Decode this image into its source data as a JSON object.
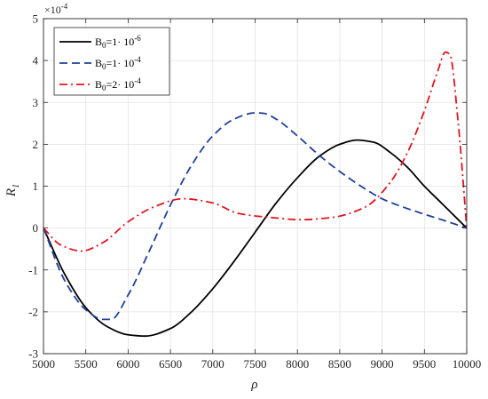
{
  "chart_data": {
    "type": "line",
    "title": "",
    "xlabel": "ρ",
    "ylabel": "R",
    "ylabel_subscript": "1",
    "y_multiplier": {
      "base": "×10",
      "exponent": "-4"
    },
    "xlim": [
      5000,
      10000
    ],
    "ylim": [
      -3,
      5
    ],
    "xticks": [
      5000,
      5500,
      6000,
      6500,
      7000,
      7500,
      8000,
      8500,
      9000,
      9500,
      10000
    ],
    "yticks": [
      -3,
      -2,
      -1,
      0,
      1,
      2,
      3,
      4,
      5
    ],
    "grid": true,
    "legend_position": "top-left",
    "series": [
      {
        "name": "B0=1· 10-6",
        "legend": {
          "main": "B",
          "sub": "0",
          "mid": "=1· 10",
          "sup": "-6"
        },
        "color": "#000000",
        "dash": "solid",
        "x": [
          5000,
          5250,
          5500,
          5750,
          6000,
          6200,
          6500,
          6750,
          7000,
          7250,
          7500,
          7750,
          8000,
          8250,
          8500,
          8700,
          8900,
          9100,
          9300,
          9500,
          9700,
          9900,
          10000
        ],
        "y": [
          0,
          -1.1,
          -1.9,
          -2.35,
          -2.55,
          -2.58,
          -2.4,
          -2.0,
          -1.45,
          -0.8,
          -0.1,
          0.6,
          1.2,
          1.7,
          2.0,
          2.1,
          2.05,
          1.8,
          1.45,
          1.0,
          0.6,
          0.2,
          0
        ]
      },
      {
        "name": "B0=1· 10-4",
        "legend": {
          "main": "B",
          "sub": "0",
          "mid": "=1· 10",
          "sup": "-4"
        },
        "color": "#1f3f99",
        "dash": "dashed",
        "x": [
          5000,
          5250,
          5500,
          5700,
          5800,
          6000,
          6250,
          6500,
          6750,
          7000,
          7250,
          7500,
          7600,
          7750,
          8000,
          8250,
          8500,
          8750,
          9000,
          9250,
          9500,
          9750,
          10000
        ],
        "y": [
          0,
          -1.25,
          -1.95,
          -2.18,
          -2.18,
          -1.6,
          -0.55,
          0.55,
          1.5,
          2.2,
          2.6,
          2.75,
          2.74,
          2.6,
          2.2,
          1.75,
          1.35,
          1.0,
          0.7,
          0.5,
          0.33,
          0.17,
          0
        ]
      },
      {
        "name": "B0=2· 10-4",
        "legend": {
          "main": "B",
          "sub": "0",
          "mid": "=2· 10",
          "sup": "-4"
        },
        "color": "#e0141e",
        "dash": "dashdot",
        "x": [
          5000,
          5200,
          5450,
          5700,
          6000,
          6300,
          6650,
          7000,
          7300,
          7700,
          8050,
          8400,
          8800,
          9100,
          9300,
          9500,
          9650,
          9750,
          9800,
          9900,
          10000
        ],
        "y": [
          0,
          -0.4,
          -0.55,
          -0.35,
          0.15,
          0.5,
          0.7,
          0.6,
          0.35,
          0.25,
          0.2,
          0.25,
          0.5,
          1.1,
          1.8,
          2.8,
          3.7,
          4.2,
          4.15,
          2.5,
          0
        ]
      }
    ]
  }
}
